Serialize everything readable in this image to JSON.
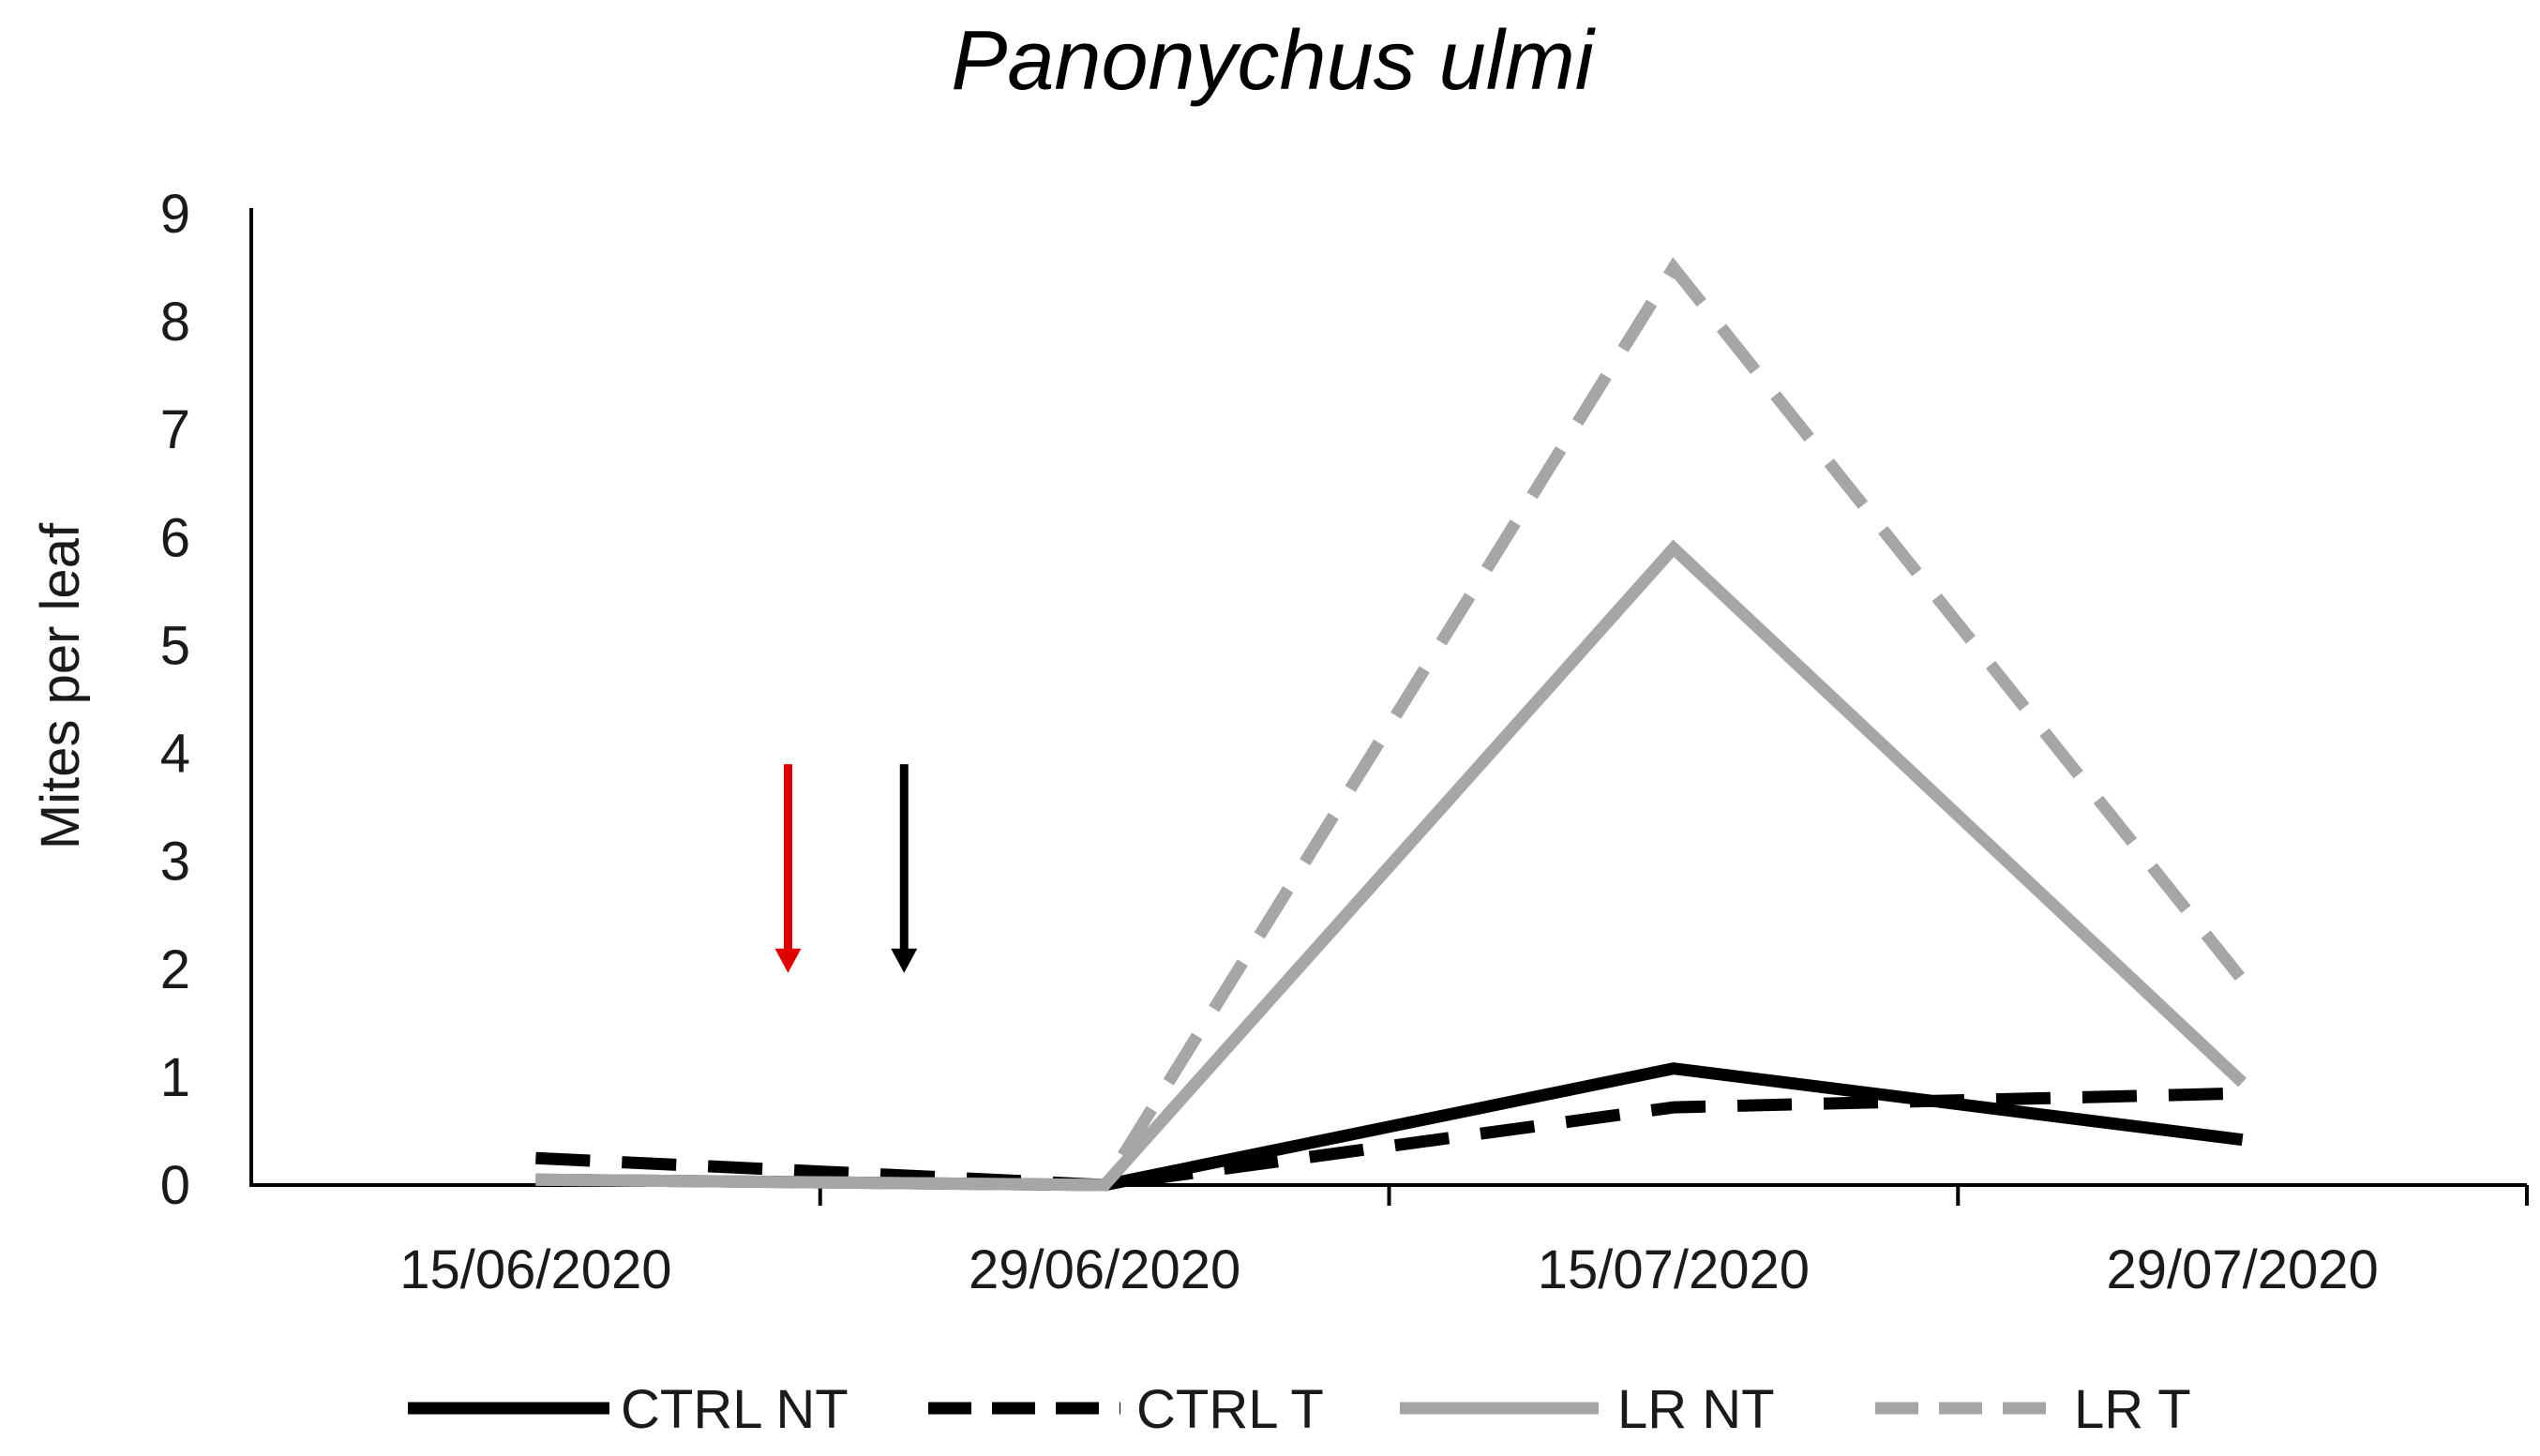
{
  "chart_data": {
    "type": "line",
    "title": "Panonychus ulmi",
    "xlabel": "",
    "ylabel": "Mites per leaf",
    "ylim": [
      0,
      9
    ],
    "yticks": [
      "0",
      "1",
      "2",
      "3",
      "4",
      "5",
      "6",
      "7",
      "8",
      "9"
    ],
    "categories": [
      "15/06/2020",
      "29/06/2020",
      "15/07/2020",
      "29/07/2020"
    ],
    "grid": false,
    "legend_position": "bottom",
    "series": [
      {
        "name": "CTRL NT",
        "color": "#000000",
        "dash": "solid",
        "values": [
          0.05,
          0.0,
          1.08,
          0.42
        ]
      },
      {
        "name": "CTRL T",
        "color": "#000000",
        "dash": "dashed",
        "values": [
          0.25,
          0.0,
          0.72,
          0.85
        ]
      },
      {
        "name": "LR NT",
        "color": "#a6a6a6",
        "dash": "solid",
        "values": [
          0.05,
          0.0,
          5.9,
          0.95
        ]
      },
      {
        "name": "LR T",
        "color": "#a6a6a6",
        "dash": "dashed",
        "values": [
          0.05,
          0.0,
          8.5,
          1.9
        ]
      }
    ],
    "annotations": [
      {
        "type": "arrow",
        "direction": "down",
        "color": "#e00000",
        "x_category_offset": 0.37,
        "from": 3.9,
        "to": 2.0
      },
      {
        "type": "arrow",
        "direction": "down",
        "color": "#000000",
        "x_category_offset": 0.45,
        "from": 3.9,
        "to": 2.0
      }
    ]
  }
}
